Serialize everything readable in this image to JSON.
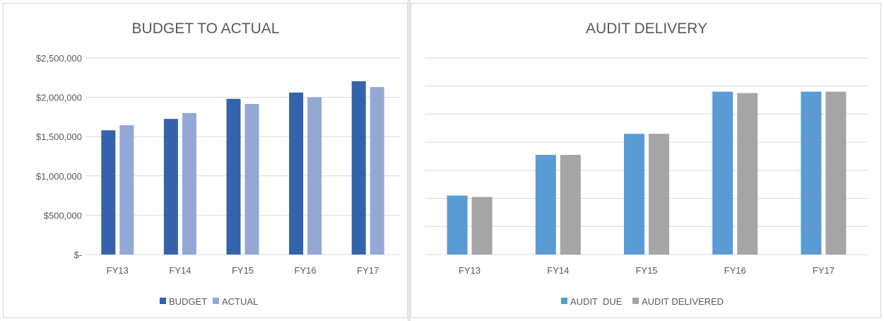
{
  "colors": {
    "budget": "#3462ab",
    "actual": "#94a8d6",
    "audit_due": "#5b9bd5",
    "audit_delivered": "#a5a5a5",
    "gridline": "#d9d9d9",
    "text": "#595959"
  },
  "chart_data": [
    {
      "type": "bar",
      "title": "BUDGET TO ACTUAL",
      "xlabel": "",
      "ylabel": "",
      "categories": [
        "FY13",
        "FY14",
        "FY15",
        "FY16",
        "FY17"
      ],
      "series": [
        {
          "name": "BUDGET",
          "values": [
            1580000,
            1725000,
            1980000,
            2060000,
            2205000
          ]
        },
        {
          "name": "ACTUAL",
          "values": [
            1645000,
            1800000,
            1915000,
            2000000,
            2130000
          ]
        }
      ],
      "ylim": [
        0,
        2500000
      ],
      "ytick_values": [
        0,
        500000,
        1000000,
        1500000,
        2000000,
        2500000
      ],
      "ytick_labels": [
        "$-",
        "$500,000",
        "$1,000,000",
        "$1,500,000",
        "$2,000,000",
        "$2,500,000"
      ],
      "grid": true,
      "legend_position": "bottom"
    },
    {
      "type": "bar",
      "title": "AUDIT DELIVERY",
      "xlabel": "",
      "ylabel": "",
      "categories": [
        "FY13",
        "FY14",
        "FY15",
        "FY16",
        "FY17"
      ],
      "series": [
        {
          "name": "AUDIT  DUE",
          "values": [
            21,
            35.5,
            43,
            58,
            58
          ]
        },
        {
          "name": "AUDIT DELIVERED",
          "values": [
            20.5,
            35.5,
            43,
            57.5,
            58
          ]
        }
      ],
      "ylim": [
        0,
        70
      ],
      "ytick_values": [
        0,
        10,
        20,
        30,
        40,
        50,
        60,
        70
      ],
      "ytick_labels": [],
      "grid": true,
      "legend_position": "bottom"
    }
  ]
}
